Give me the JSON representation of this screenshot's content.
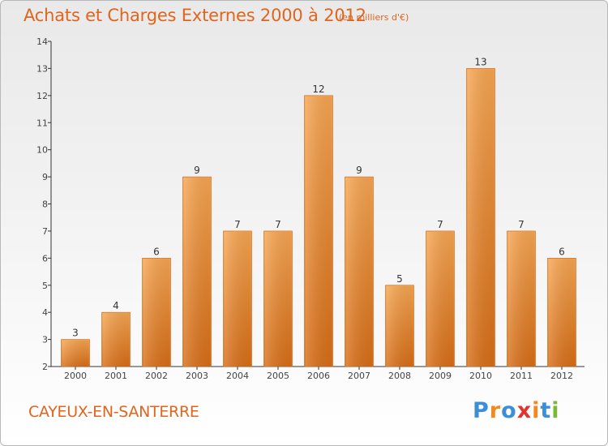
{
  "header": {
    "title": "Achats et Charges Externes 2000 à 2012",
    "subtitle": "(en milliers d'€)"
  },
  "footer": {
    "place": "CAYEUX-EN-SANTERRE",
    "logo_letters": [
      "P",
      "r",
      "o",
      "x",
      "i",
      "t",
      "i"
    ],
    "logo_colors": [
      "#3a8fd6",
      "#f08a1c",
      "#3a8fd6",
      "#e2332c",
      "#f08a1c",
      "#3a8fd6",
      "#7ab833"
    ]
  },
  "colors": {
    "bar_top": "#f7a652",
    "bar_bottom": "#d86e17",
    "accent": "#e0651d"
  },
  "chart_data": {
    "type": "bar",
    "categories": [
      "2000",
      "2001",
      "2002",
      "2003",
      "2004",
      "2005",
      "2006",
      "2007",
      "2008",
      "2009",
      "2010",
      "2011",
      "2012"
    ],
    "values": [
      3,
      4,
      6,
      9,
      7,
      7,
      12,
      9,
      5,
      7,
      13,
      7,
      6
    ],
    "ylim": [
      2,
      14
    ],
    "yticks": [
      2,
      3,
      4,
      5,
      6,
      7,
      8,
      9,
      10,
      11,
      12,
      13,
      14
    ],
    "grid": false
  }
}
